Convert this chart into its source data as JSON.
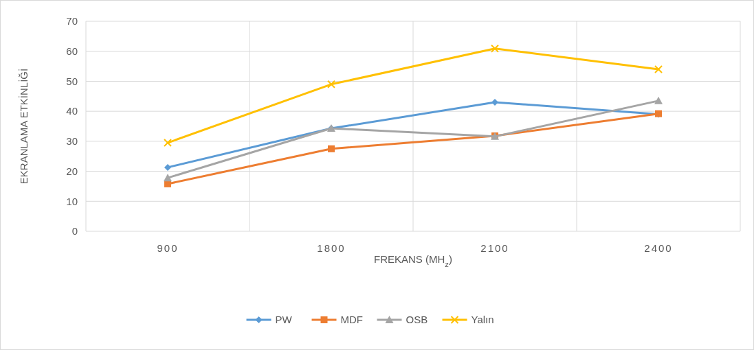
{
  "chart_data": {
    "type": "line",
    "xlabel": "FREKANS (MH$_{z}$)",
    "ylabel": "EKRANLAMA ETKİNLİĞİ",
    "categories": [
      "900",
      "1800",
      "2100",
      "2400"
    ],
    "series": [
      {
        "name": "PW",
        "color": "#5b9bd5",
        "marker": "diamond",
        "values": [
          21.3,
          34.3,
          43,
          39
        ]
      },
      {
        "name": "MDF",
        "color": "#ed7d31",
        "marker": "square",
        "values": [
          15.8,
          27.5,
          31.8,
          39.2
        ]
      },
      {
        "name": "OSB",
        "color": "#a5a5a5",
        "marker": "triangle",
        "values": [
          17.8,
          34.3,
          31.6,
          43.5
        ]
      },
      {
        "name": "Yalın",
        "color": "#ffc000",
        "marker": "cross",
        "values": [
          29.5,
          49,
          60.9,
          54
        ]
      }
    ],
    "ylim": [
      0,
      70
    ],
    "yticks": [
      0,
      10,
      20,
      30,
      40,
      50,
      60,
      70
    ],
    "grid": true,
    "legend": "bottom"
  }
}
